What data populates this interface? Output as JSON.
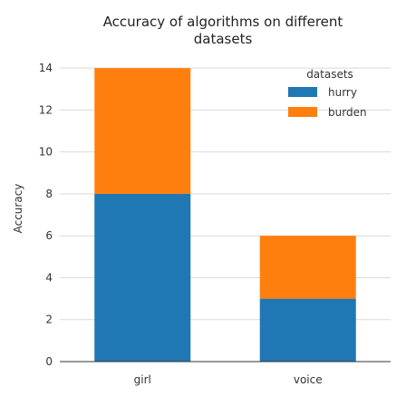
{
  "chart_data": {
    "type": "bar",
    "stacked": true,
    "title": "Accuracy of algorithms on different datasets",
    "title_lines": [
      "Accuracy of algorithms on different",
      "datasets"
    ],
    "xlabel": "",
    "ylabel": "Accuracy",
    "categories": [
      "girl",
      "voice"
    ],
    "series": [
      {
        "name": "hurry",
        "values": [
          8,
          3
        ],
        "color": "#1f77b4"
      },
      {
        "name": "burden",
        "values": [
          6,
          3
        ],
        "color": "#ff7f0e"
      }
    ],
    "ylim": [
      0,
      15
    ],
    "yticks": [
      0,
      2,
      4,
      6,
      8,
      10,
      12,
      14
    ],
    "grid": true,
    "legend": {
      "title": "datasets",
      "placement": "top-right"
    }
  }
}
